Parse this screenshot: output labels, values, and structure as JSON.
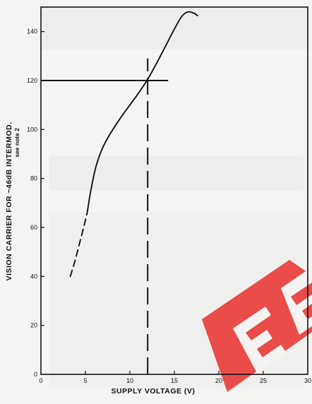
{
  "chart_data": {
    "type": "line",
    "title": "",
    "xlabel": "SUPPLY VOLTAGE  (V)",
    "ylabel": "VISION CARRIER FOR −46dB INTERMOD.",
    "ylabel_note": "see note 2",
    "xlim": [
      0,
      30
    ],
    "ylim": [
      0,
      150
    ],
    "x_ticks": [
      0,
      5,
      10,
      15,
      20,
      25,
      30
    ],
    "x_tick_labels": [
      "0",
      "5",
      "10",
      "15",
      "20",
      "25",
      "30"
    ],
    "y_ticks": [
      0,
      20,
      40,
      60,
      80,
      100,
      120,
      140
    ],
    "y_tick_labels": [
      "0",
      "20",
      "40",
      "60",
      "80",
      "100",
      "120",
      "140"
    ],
    "grid": false,
    "series": [
      {
        "style": "dashed",
        "x": [
          3.3,
          3.8,
          4.3,
          4.8,
          5.2
        ],
        "y": [
          40,
          46,
          53,
          60,
          66
        ]
      },
      {
        "style": "solid",
        "x": [
          5.2,
          5.6,
          6.2,
          7,
          8,
          9,
          10,
          11,
          12,
          13,
          14,
          15,
          15.8,
          16.5,
          17.2,
          17.6
        ],
        "y": [
          66,
          75,
          85,
          93,
          99.5,
          105,
          110,
          115,
          120.5,
          127,
          134,
          141,
          146,
          148,
          147.5,
          146.5
        ]
      }
    ],
    "reference_lines": [
      {
        "orientation": "horizontal",
        "y": 120,
        "x_range": [
          0,
          14.3
        ],
        "style": "solid"
      },
      {
        "orientation": "vertical",
        "x": 12,
        "y_range": [
          0,
          129
        ],
        "style": "dashed"
      }
    ],
    "colors": {
      "line": "#111111",
      "background": "#f4f4f2",
      "watermark": "#e9302d"
    }
  }
}
